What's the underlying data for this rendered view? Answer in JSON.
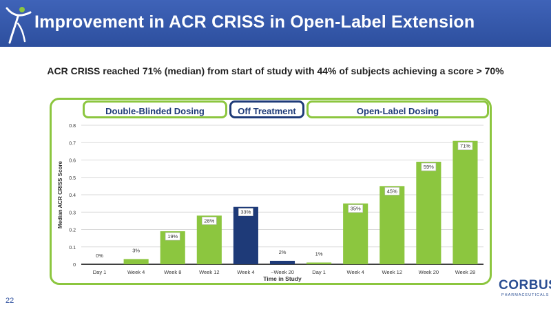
{
  "page": {
    "title": "Improvement in ACR CRISS in Open-Label Extension",
    "subtitle": "ACR CRISS reached 71% (median) from start of study with 44% of subjects achieving a score > 70%",
    "page_number": "22",
    "brand_name": "CORBUS",
    "brand_sub": "PHARMACEUTICALS"
  },
  "phases": {
    "double_blind": "Double-Blinded Dosing",
    "off_treatment": "Off Treatment",
    "open_label": "Open-Label Dosing"
  },
  "colors": {
    "header": "#2d4f9e",
    "green": "#8cc63f",
    "navy": "#1e3a78",
    "border_green": "#8cc63f"
  },
  "chart_data": {
    "type": "bar",
    "categories": [
      "Day 1",
      "Week 4",
      "Week 8",
      "Week 12",
      "Week 4",
      "~Week 20",
      "Day 1",
      "Week 4",
      "Week 12",
      "Week 20",
      "Week 28"
    ],
    "values": [
      0,
      0.03,
      0.19,
      0.28,
      0.33,
      0.02,
      0.01,
      0.35,
      0.45,
      0.59,
      0.71
    ],
    "data_labels": [
      "0%",
      "3%",
      "19%",
      "28%",
      "33%",
      "2%",
      "1%",
      "35%",
      "45%",
      "59%",
      "71%"
    ],
    "bar_colors": [
      "#8cc63f",
      "#8cc63f",
      "#8cc63f",
      "#8cc63f",
      "#1e3a78",
      "#1e3a78",
      "#8cc63f",
      "#8cc63f",
      "#8cc63f",
      "#8cc63f",
      "#8cc63f"
    ],
    "xlabel": "Time in Study",
    "ylabel": "Median ACR CRISS Score",
    "ylim": [
      0,
      0.8
    ],
    "yticks": [
      "0",
      "0.1",
      "0.2",
      "0.3",
      "0.4",
      "0.5",
      "0.6",
      "0.7",
      "0.8"
    ],
    "grid": true
  }
}
